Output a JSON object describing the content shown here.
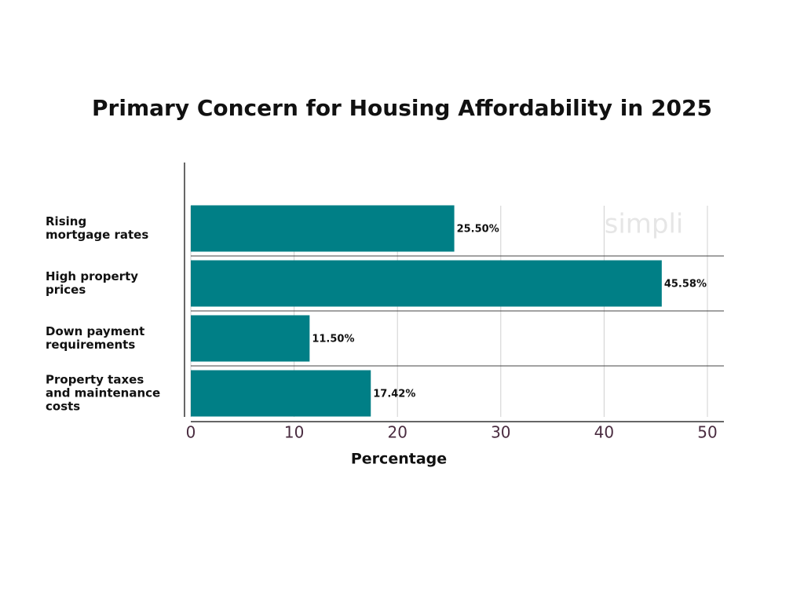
{
  "chart_data": {
    "type": "hbar",
    "title": "Primary Concern for Housing Affordability in 2025",
    "x_label": "Percentage",
    "categories": [
      "Rising\nmortgage rates",
      "High property\nprices",
      "Down payment\nrequirements",
      "Property taxes\nand maintenance\ncosts"
    ],
    "values": [
      25.5,
      45.58,
      11.5,
      17.42
    ],
    "value_labels": [
      "25.50%",
      "45.58%",
      "11.50%",
      "17.42%"
    ],
    "color": "#007f86",
    "xlim": [
      0,
      50
    ],
    "xticks": [
      0,
      10,
      20,
      30,
      40,
      50
    ],
    "grid": true,
    "watermark": "simpli"
  }
}
